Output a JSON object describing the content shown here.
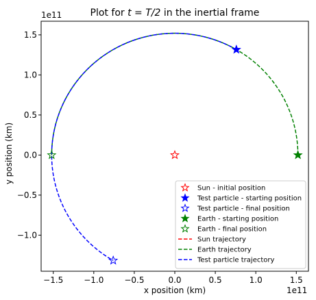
{
  "chart_data": {
    "type": "line",
    "title_prefix": "Plot for ",
    "title_math": "t = T/2",
    "title_suffix": " in the inertial frame",
    "xlabel": "x position (km)",
    "ylabel": "y position (km)",
    "x_exponent": "1e11",
    "y_exponent": "1e11",
    "xlim": [
      -165000000000.0,
      165000000000.0
    ],
    "ylim": [
      -145000000000.0,
      167000000000.0
    ],
    "x_ticks": [
      -150000000000.0,
      -100000000000.0,
      -50000000000.0,
      0,
      50000000000.0,
      100000000000.0,
      150000000000.0
    ],
    "x_tick_labels": [
      "−1.5",
      "−1.0",
      "−0.5",
      "0.0",
      "0.5",
      "1.0",
      "1.5"
    ],
    "y_ticks": [
      -100000000000.0,
      -50000000000.0,
      0,
      50000000000.0,
      100000000000.0,
      150000000000.0
    ],
    "y_tick_labels": [
      "−1.0",
      "−0.5",
      "0.0",
      "0.5",
      "1.0",
      "1.5"
    ],
    "grid": false,
    "legend_position": "lower-right",
    "radius": 152000000000.0,
    "trajectories": [
      {
        "name": "Sun trajectory",
        "color": "#ff0000",
        "style": "dashed",
        "points": [
          [
            0,
            0
          ],
          [
            0,
            0
          ]
        ]
      },
      {
        "name": "Earth trajectory",
        "color": "#008000",
        "style": "dashed",
        "arc_deg": [
          0,
          180
        ]
      },
      {
        "name": "Test particle trajectory",
        "color": "#0000ff",
        "style": "dashed",
        "arc_deg": [
          60,
          240
        ]
      }
    ],
    "markers": [
      {
        "name": "Sun - initial position",
        "color": "#ff0000",
        "filled": false,
        "x": 0,
        "y": 0
      },
      {
        "name": "Test particle - starting position",
        "color": "#0000ff",
        "filled": true,
        "x": 76000000000.0,
        "y": 131600000000.0
      },
      {
        "name": "Test particle - final position",
        "color": "#0000ff",
        "filled": false,
        "x": -76000000000.0,
        "y": -131600000000.0
      },
      {
        "name": "Earth - starting position",
        "color": "#008000",
        "filled": true,
        "x": 152000000000.0,
        "y": 0
      },
      {
        "name": "Earth - final position",
        "color": "#008000",
        "filled": false,
        "x": -152000000000.0,
        "y": 0
      }
    ],
    "legend": [
      {
        "label": "Sun - initial position",
        "kind": "marker",
        "color": "#ff0000",
        "filled": false
      },
      {
        "label": "Test particle - starting position",
        "kind": "marker",
        "color": "#0000ff",
        "filled": true
      },
      {
        "label": "Test particle - final position",
        "kind": "marker",
        "color": "#0000ff",
        "filled": false
      },
      {
        "label": "Earth - starting position",
        "kind": "marker",
        "color": "#008000",
        "filled": true
      },
      {
        "label": "Earth - final position",
        "kind": "marker",
        "color": "#008000",
        "filled": false
      },
      {
        "label": "Sun trajectory",
        "kind": "line",
        "color": "#ff0000"
      },
      {
        "label": "Earth trajectory",
        "kind": "line",
        "color": "#008000"
      },
      {
        "label": "Test particle trajectory",
        "kind": "line",
        "color": "#0000ff"
      }
    ]
  }
}
